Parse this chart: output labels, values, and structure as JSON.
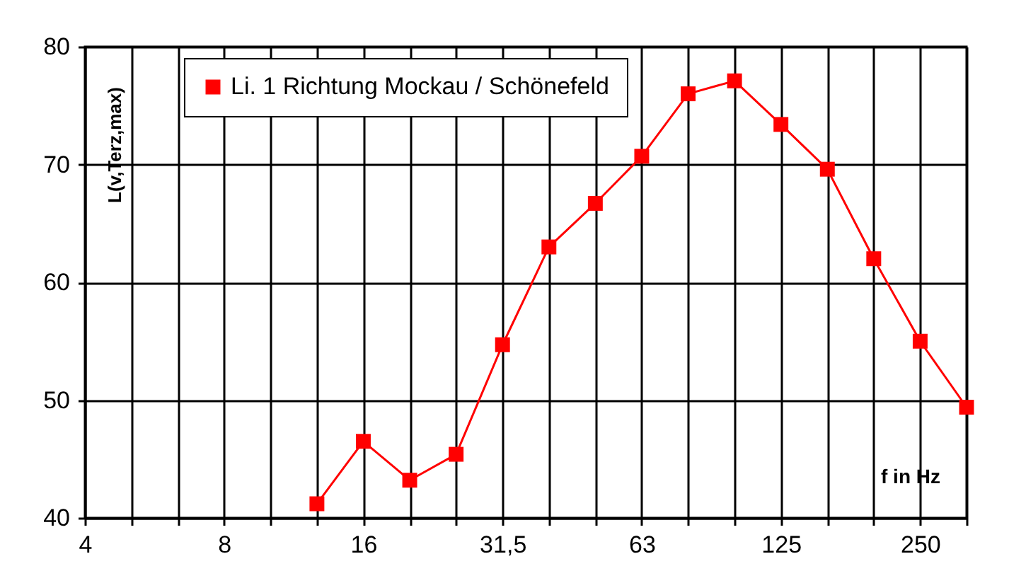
{
  "chart_data": {
    "type": "line",
    "xlabel": "f in Hz",
    "ylabel": "L(v,Terz,max)",
    "categories": [
      "4",
      null,
      null,
      "8",
      null,
      null,
      "16",
      null,
      null,
      "31,5",
      null,
      null,
      "63",
      null,
      null,
      "125",
      null,
      null,
      "250",
      null
    ],
    "series": [
      {
        "name": "Li. 1 Richtung Mockau / Schönefeld",
        "color": "#ff0000",
        "values": [
          null,
          null,
          null,
          null,
          null,
          41.2,
          46.5,
          43.2,
          45.4,
          54.7,
          63.0,
          66.7,
          70.7,
          76.0,
          77.1,
          73.4,
          69.6,
          62.0,
          55.0,
          49.4
        ]
      }
    ],
    "ylim": [
      40,
      80
    ],
    "yticks": [
      40,
      50,
      60,
      70,
      80
    ],
    "grid": true,
    "legend": "top left",
    "marker": "square",
    "line_style": "solid"
  }
}
